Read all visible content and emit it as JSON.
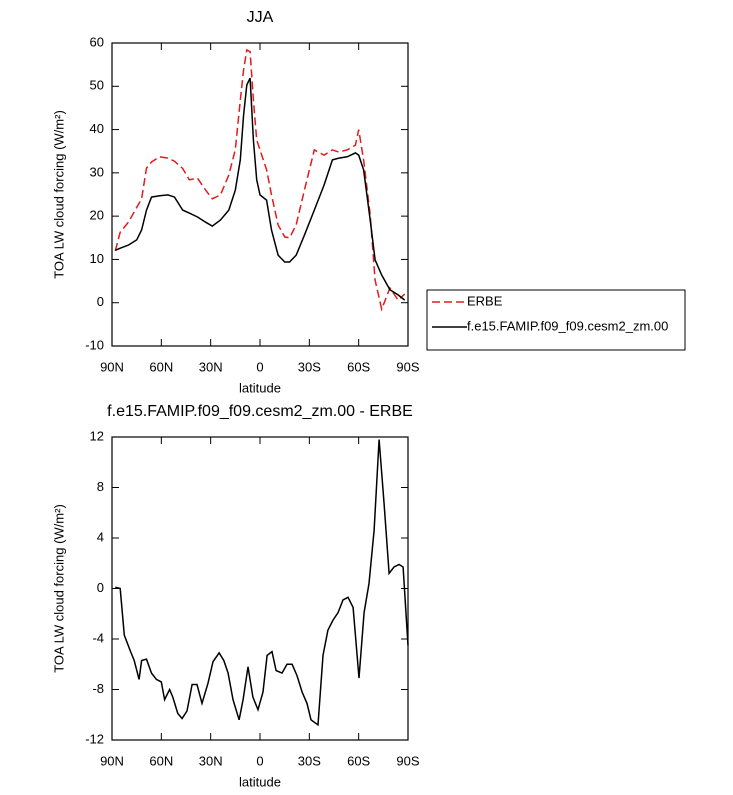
{
  "chart_data": [
    {
      "type": "line",
      "title": "JJA",
      "x_label": "latitude",
      "y_label": "TOA LW cloud forcing (W/m²)",
      "x": [
        88,
        85,
        80,
        75,
        72,
        69,
        66,
        61,
        56,
        52,
        47,
        43,
        38,
        33,
        29,
        24,
        19,
        15,
        12,
        10,
        8,
        6,
        4,
        2,
        0,
        -4,
        -7,
        -11,
        -15,
        -18,
        -22,
        -27,
        -33,
        -39,
        -44,
        -48,
        -53,
        -58,
        -60,
        -63,
        -67,
        -70,
        -74,
        -79,
        -84,
        -88
      ],
      "series": [
        {
          "name": "ERBE",
          "color": "#e41a1c",
          "dash": true,
          "values": [
            12,
            16.3,
            18.6,
            22,
            24,
            31.1,
            32.5,
            33.7,
            33.4,
            32.7,
            31,
            28.4,
            28.8,
            26,
            24,
            24.9,
            29.5,
            35.3,
            46.8,
            53.8,
            58.4,
            58,
            46.8,
            37.6,
            35.3,
            30.7,
            24.9,
            18,
            15.2,
            15,
            18,
            26,
            35.3,
            34.1,
            35.3,
            34.8,
            35.3,
            36.4,
            40,
            33,
            20.3,
            5.2,
            -1.5,
            3.4,
            0.6,
            2
          ]
        },
        {
          "name": "f.e15.FAMIP.f09_f09.cesm2_zm.00",
          "color": "#000000",
          "dash": false,
          "values": [
            12.1,
            12.6,
            13.3,
            14.5,
            16.8,
            21.4,
            24.4,
            24.7,
            24.9,
            24.4,
            21.4,
            20.7,
            19.8,
            18.6,
            17.7,
            19.1,
            21.4,
            26,
            33,
            43.4,
            50.3,
            51.9,
            37.6,
            28.4,
            24.9,
            23.7,
            16.8,
            11,
            9.4,
            9.4,
            11,
            15.6,
            21.4,
            27.2,
            33,
            33.4,
            33.7,
            34.6,
            34.1,
            30.7,
            19.1,
            9.9,
            6.4,
            3,
            1.8,
            0.6
          ]
        }
      ],
      "xlim": [
        90,
        -90
      ],
      "xticks": [
        {
          "value": 90,
          "label": "90N"
        },
        {
          "value": 60,
          "label": "60N"
        },
        {
          "value": 30,
          "label": "30N"
        },
        0,
        {
          "value": -30,
          "label": "30S"
        },
        {
          "value": -60,
          "label": "60S"
        },
        {
          "value": -90,
          "label": "90S"
        }
      ],
      "ylim": [
        -10,
        60
      ],
      "yticks": [
        -10,
        0,
        10,
        20,
        30,
        40,
        50,
        60
      ],
      "legend": "outside-right"
    },
    {
      "type": "line",
      "title": "f.e15.FAMIP.f09_f09.cesm2_zm.00 - ERBE",
      "x_label": "latitude",
      "y_label": "TOA LW cloud forcing (W/m²)",
      "x": [
        88,
        85,
        82.5,
        79,
        76.5,
        73.5,
        72,
        69,
        66,
        63,
        60,
        58,
        55,
        53,
        50,
        47.4,
        44.4,
        41.3,
        38.3,
        35.3,
        31.6,
        28.6,
        24.9,
        22,
        19.4,
        16.4,
        12.7,
        10.3,
        7.3,
        4.3,
        1.2,
        -1.8,
        -4.3,
        -7.3,
        -9.8,
        -13.4,
        -16.4,
        -19.5,
        -22.5,
        -25.6,
        -28.6,
        -31,
        -35.3,
        -38.3,
        -41.3,
        -44.4,
        -47.5,
        -50.5,
        -53.5,
        -56.6,
        -60.2,
        -63.3,
        -66.3,
        -69.4,
        -72.4,
        -75.5,
        -78.5,
        -81.5,
        -84.6,
        -87,
        -90
      ],
      "series": [
        {
          "color": "#000000",
          "dash": false,
          "values": [
            0.1,
            0,
            -3.7,
            -4.9,
            -5.7,
            -7.2,
            -5.7,
            -5.6,
            -6.7,
            -7.2,
            -7.4,
            -8.8,
            -8,
            -8.6,
            -9.9,
            -10.3,
            -9.7,
            -7.6,
            -7.6,
            -9.1,
            -7.5,
            -5.8,
            -5.1,
            -5.7,
            -6.7,
            -8.8,
            -10.4,
            -8.8,
            -6.2,
            -8.6,
            -9.6,
            -8.2,
            -5.3,
            -5,
            -6.5,
            -6.7,
            -6,
            -6,
            -6.9,
            -8.2,
            -9.1,
            -10.4,
            -10.8,
            -5.3,
            -3.3,
            -2.5,
            -1.9,
            -0.9,
            -0.7,
            -1.5,
            -7.1,
            -1.9,
            0.4,
            4.6,
            11.8,
            6.6,
            1.2,
            1.7,
            1.9,
            1.7,
            -4.5
          ]
        }
      ],
      "xlim": [
        90,
        -90
      ],
      "xticks": [
        {
          "value": 90,
          "label": "90N"
        },
        {
          "value": 60,
          "label": "60N"
        },
        {
          "value": 30,
          "label": "30N"
        },
        0,
        {
          "value": -30,
          "label": "30S"
        },
        {
          "value": -60,
          "label": "60S"
        },
        {
          "value": -90,
          "label": "90S"
        }
      ],
      "ylim": [
        -12,
        12
      ],
      "yticks": [
        -12,
        -8,
        -4,
        0,
        4,
        8,
        12
      ]
    }
  ]
}
